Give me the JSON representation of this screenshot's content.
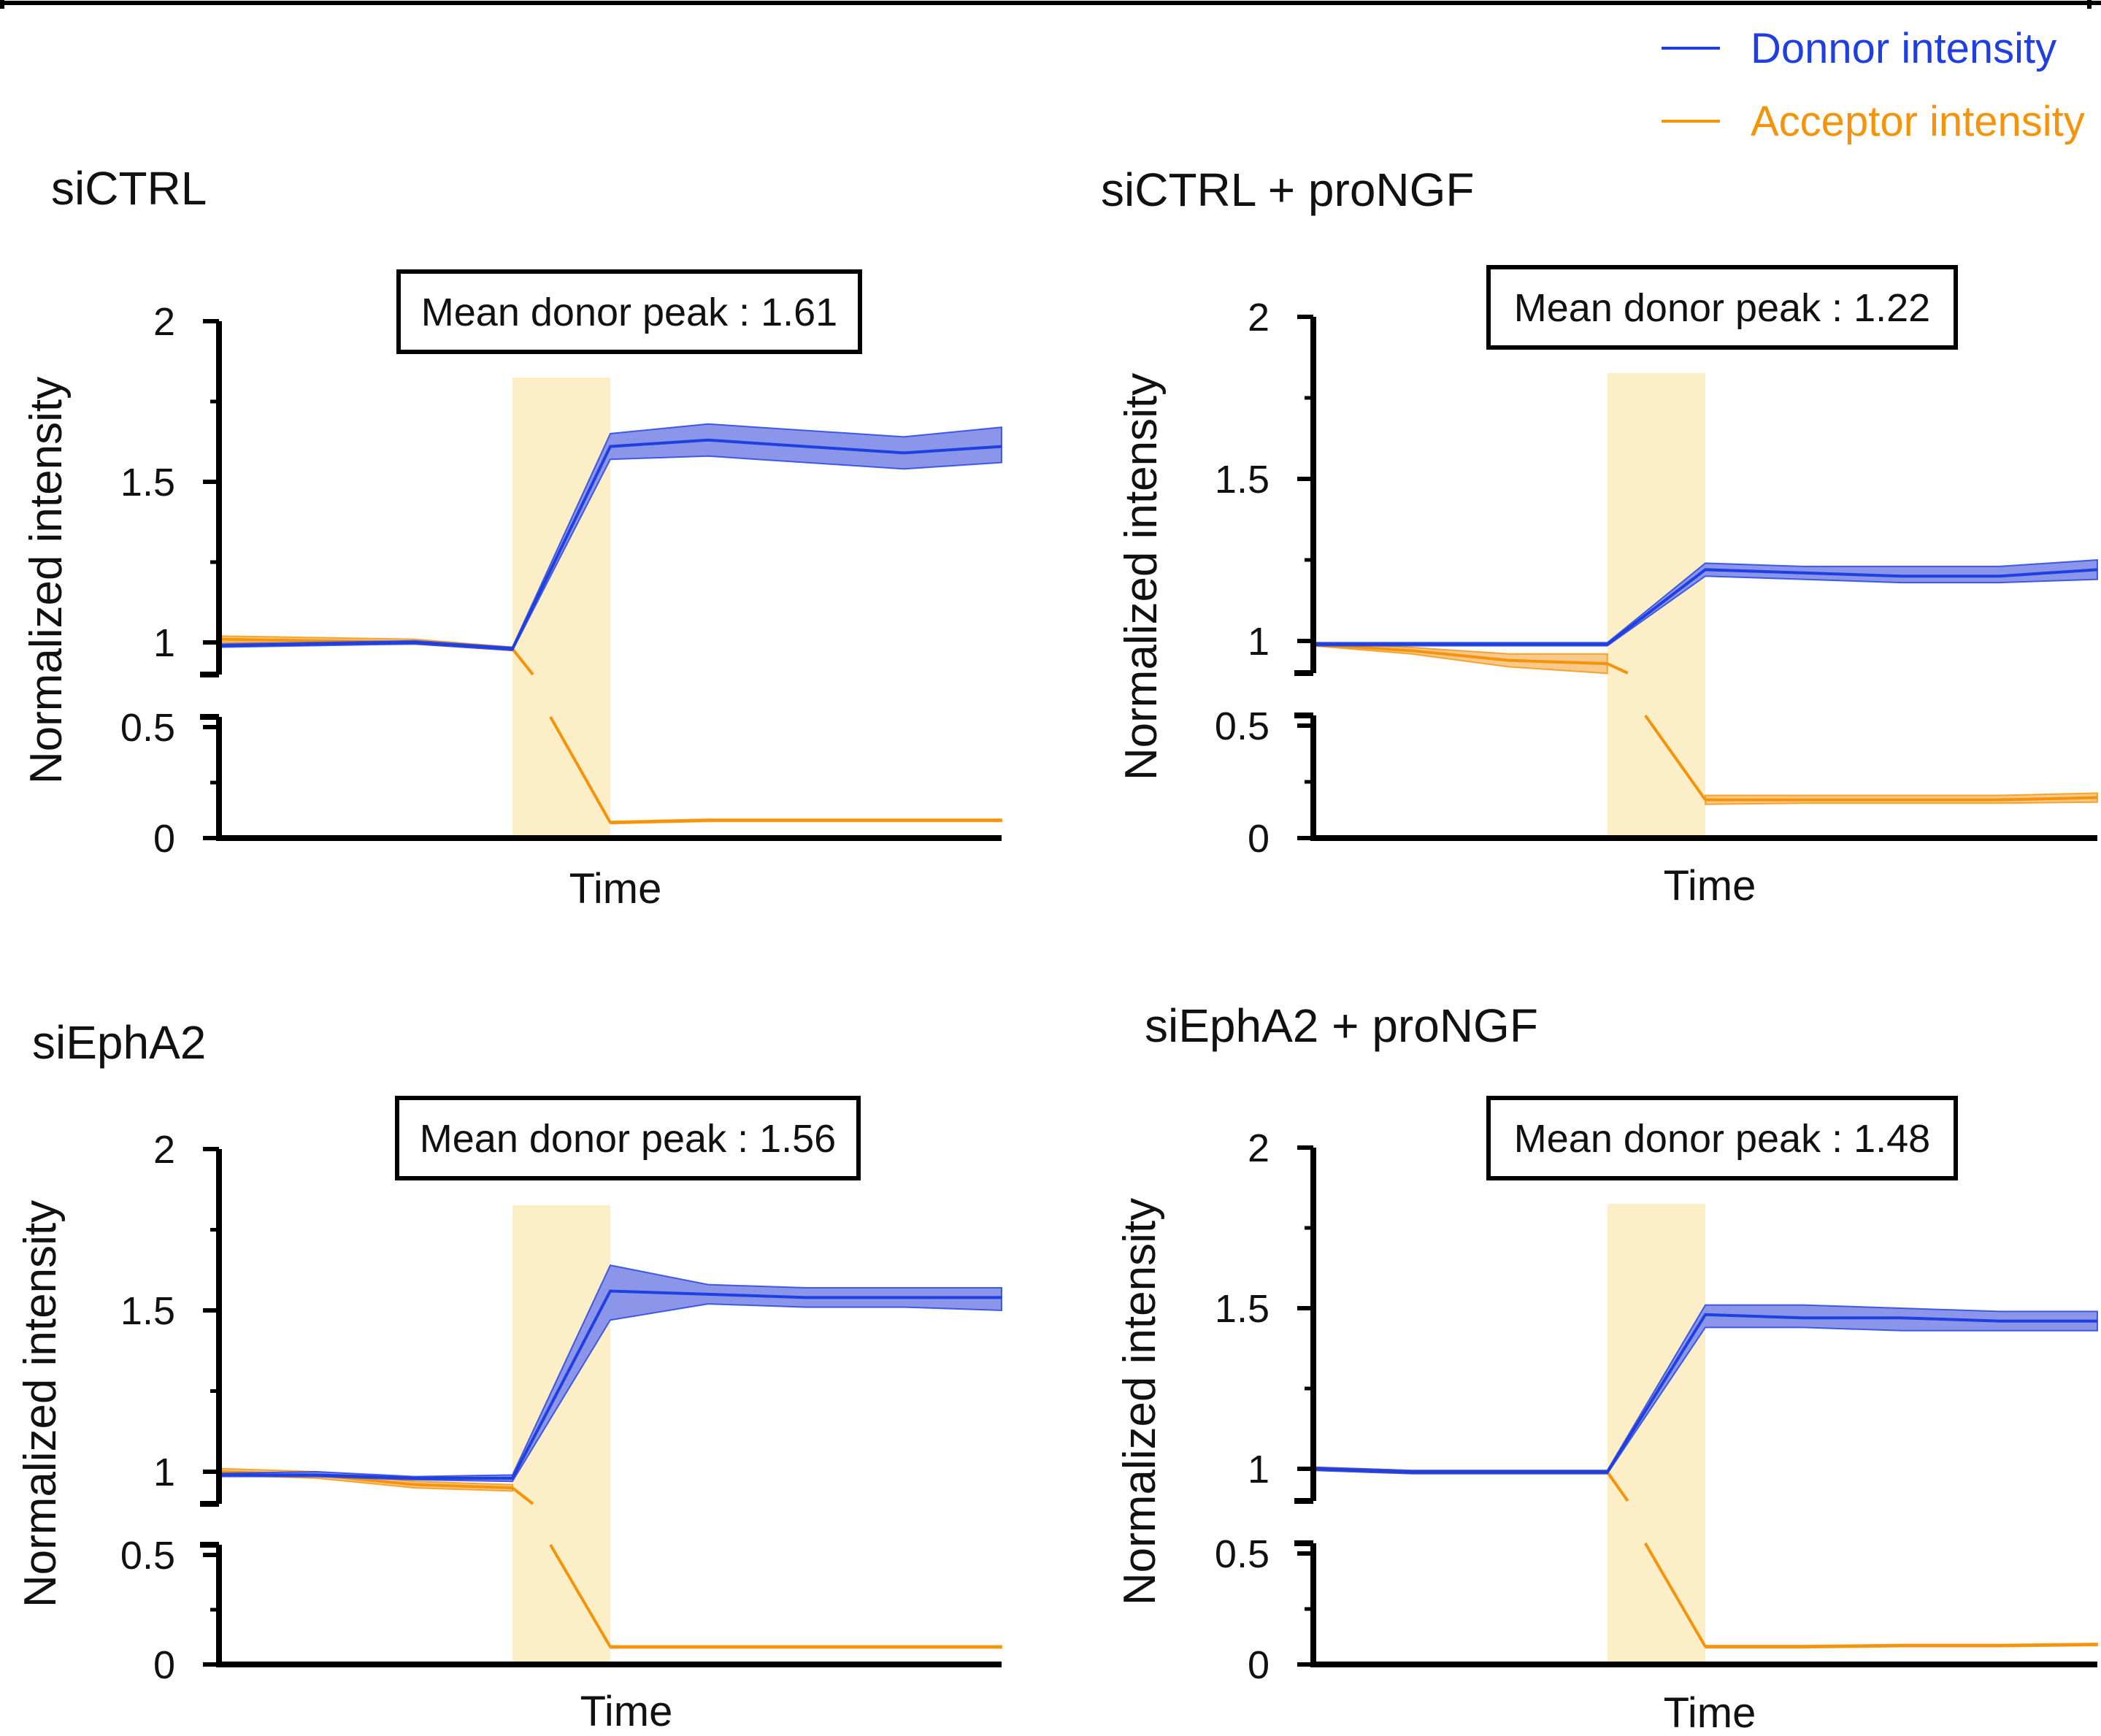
{
  "figure": {
    "legend": {
      "placement": "top-right",
      "entries": [
        {
          "label": "Donnor intensity",
          "color": "#1f3fe0"
        },
        {
          "label": "Acceptor intensity",
          "color": "#f5930a"
        }
      ]
    }
  },
  "colors": {
    "donor": "#1f3fe0",
    "donor_fill": "#8b96ea",
    "acceptor": "#f5930a",
    "acceptor_fill": "#f8c98a",
    "stimulus_band": "#fcefc8",
    "axis": "#000000"
  },
  "chart_data": [
    {
      "type": "line",
      "title": "siCTRL",
      "annotation": "Mean donor peak : 1.61",
      "xlabel": "Time",
      "ylabel": "Normalized intensity",
      "yticks": [
        "2",
        "1.5",
        "1",
        "0.5",
        "0"
      ],
      "broken_y_axis": true,
      "stimulus_band_x": [
        3,
        4
      ],
      "x": [
        0,
        2,
        3,
        4,
        5,
        7,
        8
      ],
      "series": [
        {
          "name": "Donnor intensity",
          "values": [
            0.99,
            1.0,
            0.98,
            1.61,
            1.63,
            1.59,
            1.61
          ],
          "lower": [
            0.985,
            0.995,
            0.975,
            1.57,
            1.58,
            1.54,
            1.56
          ],
          "upper": [
            0.995,
            1.005,
            0.985,
            1.65,
            1.68,
            1.64,
            1.67
          ]
        },
        {
          "name": "Acceptor intensity",
          "values": [
            1.01,
            1.0,
            0.98,
            0.07,
            0.08,
            0.08,
            0.08
          ],
          "lower": [
            1.0,
            0.995,
            0.975,
            0.065,
            0.075,
            0.075,
            0.075
          ],
          "upper": [
            1.02,
            1.01,
            0.985,
            0.075,
            0.085,
            0.085,
            0.085
          ]
        }
      ]
    },
    {
      "type": "line",
      "title": "siCTRL + proNGF",
      "annotation": "Mean donor peak : 1.22",
      "xlabel": "Time",
      "ylabel": "Normalized intensity",
      "yticks": [
        "2",
        "1.5",
        "1",
        "0.5",
        "0"
      ],
      "broken_y_axis": true,
      "stimulus_band_x": [
        3,
        4
      ],
      "x": [
        0,
        1,
        2,
        3,
        4,
        5,
        6,
        7,
        8
      ],
      "series": [
        {
          "name": "Donnor intensity",
          "values": [
            0.99,
            0.99,
            0.99,
            0.99,
            1.22,
            1.21,
            1.2,
            1.2,
            1.22
          ],
          "lower": [
            0.985,
            0.985,
            0.985,
            0.985,
            1.2,
            1.19,
            1.18,
            1.18,
            1.19
          ],
          "upper": [
            0.995,
            0.995,
            0.995,
            0.995,
            1.24,
            1.23,
            1.23,
            1.23,
            1.25
          ]
        },
        {
          "name": "Acceptor intensity",
          "values": [
            0.99,
            0.97,
            0.94,
            0.93,
            0.17,
            0.17,
            0.17,
            0.17,
            0.18
          ],
          "lower": [
            0.985,
            0.96,
            0.92,
            0.9,
            0.15,
            0.155,
            0.155,
            0.155,
            0.16
          ],
          "upper": [
            0.995,
            0.98,
            0.96,
            0.96,
            0.19,
            0.19,
            0.19,
            0.19,
            0.2
          ]
        }
      ]
    },
    {
      "type": "line",
      "title": "siEphA2",
      "annotation": "Mean donor peak : 1.56",
      "xlabel": "Time",
      "ylabel": "Normalized intensity",
      "yticks": [
        "2",
        "1.5",
        "1",
        "0.5",
        "0"
      ],
      "broken_y_axis": true,
      "stimulus_band_x": [
        3,
        4
      ],
      "x": [
        0,
        1,
        2,
        3,
        4,
        5,
        6,
        7,
        8
      ],
      "series": [
        {
          "name": "Donnor intensity",
          "values": [
            0.99,
            0.99,
            0.98,
            0.98,
            1.56,
            1.55,
            1.54,
            1.54,
            1.54
          ],
          "lower": [
            0.985,
            0.985,
            0.975,
            0.97,
            1.47,
            1.52,
            1.51,
            1.51,
            1.5
          ],
          "upper": [
            0.995,
            1.0,
            0.985,
            0.99,
            1.64,
            1.58,
            1.57,
            1.57,
            1.57
          ]
        },
        {
          "name": "Acceptor intensity",
          "values": [
            1.0,
            0.99,
            0.96,
            0.95,
            0.08,
            0.08,
            0.08,
            0.08,
            0.08
          ],
          "lower": [
            0.99,
            0.98,
            0.95,
            0.94,
            0.075,
            0.075,
            0.075,
            0.075,
            0.075
          ],
          "upper": [
            1.01,
            1.0,
            0.97,
            0.96,
            0.085,
            0.085,
            0.085,
            0.085,
            0.085
          ]
        }
      ]
    },
    {
      "type": "line",
      "title": "siEphA2 + proNGF",
      "annotation": "Mean donor peak : 1.48",
      "xlabel": "Time",
      "ylabel": "Normalized intensity",
      "yticks": [
        "2",
        "1.5",
        "1",
        "0.5",
        "0"
      ],
      "broken_y_axis": true,
      "stimulus_band_x": [
        3,
        4
      ],
      "x": [
        0,
        1,
        2,
        3,
        4,
        5,
        6,
        7,
        8
      ],
      "series": [
        {
          "name": "Donnor intensity",
          "values": [
            1.0,
            0.99,
            0.99,
            0.99,
            1.48,
            1.47,
            1.47,
            1.46,
            1.46
          ],
          "lower": [
            0.995,
            0.985,
            0.985,
            0.985,
            1.44,
            1.44,
            1.43,
            1.43,
            1.43
          ],
          "upper": [
            1.005,
            0.995,
            0.995,
            0.995,
            1.51,
            1.51,
            1.5,
            1.49,
            1.49
          ]
        },
        {
          "name": "Acceptor intensity",
          "values": [
            1.0,
            0.99,
            0.99,
            0.99,
            0.08,
            0.08,
            0.085,
            0.085,
            0.09
          ],
          "lower": [
            0.995,
            0.985,
            0.985,
            0.985,
            0.075,
            0.075,
            0.08,
            0.08,
            0.085
          ],
          "upper": [
            1.005,
            0.995,
            0.995,
            0.995,
            0.085,
            0.085,
            0.09,
            0.09,
            0.095
          ]
        }
      ]
    }
  ]
}
